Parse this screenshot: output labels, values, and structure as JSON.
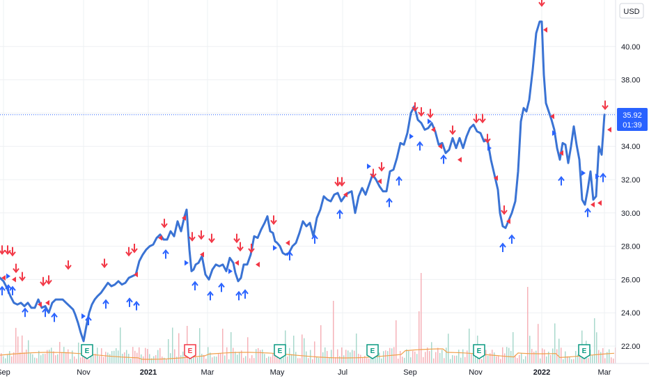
{
  "currency": "USD",
  "price_badge": {
    "price": "35.92",
    "countdown": "01:39"
  },
  "colors": {
    "line": "#3a73d4",
    "up_arrow": "#2962ff",
    "down_arrow": "#f23645",
    "grid": "#eef0f3",
    "vol_up": "#a8d8cc",
    "vol_down": "#f6b2b8",
    "vol_ma": "#f0a04b",
    "earn_green": "#089981",
    "earn_red": "#f23645"
  },
  "chart_data": {
    "type": "line",
    "y_ticks": [
      "22.00",
      "24.00",
      "26.00",
      "28.00",
      "30.00",
      "32.00",
      "34.00",
      "36.00",
      "38.00",
      "40.00"
    ],
    "ylim": [
      21.2,
      42.2
    ],
    "grid": true,
    "x_ticks": [
      {
        "label": "Sep",
        "t": 5,
        "bold": false
      },
      {
        "label": "Nov",
        "t": 120,
        "bold": false
      },
      {
        "label": "2021",
        "t": 213,
        "bold": true
      },
      {
        "label": "Mar",
        "t": 298,
        "bold": false
      },
      {
        "label": "May",
        "t": 398,
        "bold": false
      },
      {
        "label": "Jul",
        "t": 492,
        "bold": false
      },
      {
        "label": "Sep",
        "t": 589,
        "bold": false
      },
      {
        "label": "Nov",
        "t": 683,
        "bold": false
      },
      {
        "label": "2022",
        "t": 778,
        "bold": true
      },
      {
        "label": "Mar",
        "t": 868,
        "bold": false
      }
    ],
    "series": [
      {
        "points": [
          [
            0,
            26.1
          ],
          [
            5,
            25.9
          ],
          [
            10,
            25.5
          ],
          [
            15,
            25.0
          ],
          [
            20,
            24.6
          ],
          [
            25,
            24.5
          ],
          [
            30,
            24.6
          ],
          [
            35,
            24.4
          ],
          [
            40,
            24.6
          ],
          [
            45,
            24.3
          ],
          [
            50,
            24.3
          ],
          [
            55,
            24.8
          ],
          [
            60,
            24.3
          ],
          [
            65,
            24.4
          ],
          [
            70,
            24.0
          ],
          [
            75,
            24.6
          ],
          [
            80,
            24.8
          ],
          [
            85,
            24.8
          ],
          [
            90,
            24.8
          ],
          [
            95,
            24.6
          ],
          [
            100,
            24.4
          ],
          [
            105,
            24.2
          ],
          [
            108,
            23.9
          ],
          [
            112,
            23.4
          ],
          [
            116,
            22.8
          ],
          [
            120,
            22.3
          ],
          [
            124,
            23.2
          ],
          [
            128,
            24.0
          ],
          [
            132,
            24.5
          ],
          [
            136,
            24.8
          ],
          [
            140,
            25.0
          ],
          [
            145,
            25.2
          ],
          [
            150,
            25.5
          ],
          [
            155,
            25.8
          ],
          [
            160,
            25.6
          ],
          [
            165,
            25.7
          ],
          [
            170,
            25.9
          ],
          [
            175,
            25.7
          ],
          [
            180,
            25.8
          ],
          [
            185,
            26.1
          ],
          [
            190,
            26.2
          ],
          [
            195,
            26.3
          ],
          [
            200,
            27.1
          ],
          [
            205,
            27.5
          ],
          [
            210,
            27.8
          ],
          [
            215,
            28.0
          ],
          [
            220,
            28.1
          ],
          [
            225,
            28.5
          ],
          [
            230,
            28.7
          ],
          [
            235,
            28.4
          ],
          [
            240,
            28.4
          ],
          [
            245,
            28.9
          ],
          [
            250,
            28.6
          ],
          [
            255,
            29.5
          ],
          [
            260,
            28.9
          ],
          [
            265,
            29.8
          ],
          [
            268,
            30.2
          ],
          [
            272,
            27.8
          ],
          [
            275,
            26.5
          ],
          [
            278,
            26.6
          ],
          [
            281,
            26.9
          ],
          [
            285,
            27.0
          ],
          [
            290,
            27.4
          ],
          [
            295,
            26.3
          ],
          [
            300,
            26.0
          ],
          [
            305,
            26.6
          ],
          [
            310,
            26.9
          ],
          [
            315,
            26.8
          ],
          [
            320,
            26.9
          ],
          [
            325,
            26.5
          ],
          [
            330,
            27.3
          ],
          [
            335,
            27.0
          ],
          [
            338,
            26.4
          ],
          [
            342,
            25.9
          ],
          [
            346,
            26.1
          ],
          [
            350,
            26.9
          ],
          [
            355,
            26.9
          ],
          [
            360,
            27.5
          ],
          [
            365,
            28.6
          ],
          [
            370,
            28.5
          ],
          [
            375,
            29.0
          ],
          [
            380,
            29.4
          ],
          [
            384,
            29.8
          ],
          [
            388,
            28.9
          ],
          [
            392,
            28.8
          ],
          [
            395,
            28.3
          ],
          [
            398,
            28.2
          ],
          [
            402,
            28.0
          ],
          [
            406,
            27.6
          ],
          [
            410,
            27.5
          ],
          [
            415,
            27.6
          ],
          [
            420,
            28.0
          ],
          [
            425,
            28.2
          ],
          [
            430,
            28.8
          ],
          [
            435,
            29.5
          ],
          [
            440,
            29.2
          ],
          [
            445,
            29.4
          ],
          [
            450,
            28.6
          ],
          [
            455,
            29.7
          ],
          [
            460,
            30.2
          ],
          [
            465,
            31.0
          ],
          [
            470,
            30.8
          ],
          [
            475,
            30.7
          ],
          [
            480,
            31.1
          ],
          [
            485,
            31.2
          ],
          [
            490,
            30.7
          ],
          [
            495,
            31.0
          ],
          [
            500,
            31.2
          ],
          [
            505,
            31.3
          ],
          [
            510,
            30.0
          ],
          [
            515,
            31.0
          ],
          [
            520,
            31.5
          ],
          [
            525,
            31.1
          ],
          [
            530,
            31.7
          ],
          [
            535,
            32.3
          ],
          [
            540,
            32.0
          ],
          [
            545,
            31.6
          ],
          [
            550,
            31.3
          ],
          [
            555,
            31.3
          ],
          [
            560,
            32.5
          ],
          [
            565,
            32.6
          ],
          [
            570,
            33.3
          ],
          [
            575,
            34.2
          ],
          [
            580,
            34.1
          ],
          [
            585,
            34.8
          ],
          [
            590,
            36.0
          ],
          [
            595,
            36.4
          ],
          [
            600,
            35.6
          ],
          [
            605,
            35.4
          ],
          [
            610,
            35.0
          ],
          [
            615,
            35.1
          ],
          [
            620,
            35.4
          ],
          [
            625,
            34.9
          ],
          [
            630,
            34.1
          ],
          [
            635,
            34.2
          ],
          [
            640,
            33.6
          ],
          [
            645,
            33.8
          ],
          [
            650,
            34.5
          ],
          [
            655,
            33.9
          ],
          [
            660,
            34.5
          ],
          [
            665,
            33.9
          ],
          [
            670,
            34.6
          ],
          [
            675,
            35.1
          ],
          [
            680,
            35.3
          ],
          [
            685,
            34.9
          ],
          [
            690,
            34.8
          ],
          [
            695,
            34.3
          ],
          [
            700,
            34.4
          ],
          [
            705,
            33.2
          ],
          [
            710,
            32.3
          ],
          [
            715,
            31.4
          ],
          [
            718,
            30.0
          ],
          [
            722,
            29.2
          ],
          [
            726,
            29.1
          ],
          [
            730,
            29.5
          ],
          [
            735,
            30.0
          ],
          [
            740,
            30.7
          ],
          [
            744,
            32.5
          ],
          [
            748,
            35.5
          ],
          [
            752,
            36.3
          ],
          [
            756,
            36.1
          ],
          [
            760,
            36.8
          ],
          [
            765,
            38.6
          ],
          [
            770,
            40.8
          ],
          [
            775,
            41.5
          ],
          [
            778,
            41.5
          ],
          [
            781,
            38.3
          ],
          [
            784,
            36.6
          ],
          [
            788,
            36.1
          ],
          [
            792,
            35.6
          ],
          [
            796,
            35.0
          ],
          [
            800,
            33.9
          ],
          [
            804,
            33.2
          ],
          [
            808,
            34.2
          ],
          [
            812,
            34.1
          ],
          [
            816,
            33.0
          ],
          [
            820,
            34.0
          ],
          [
            824,
            35.2
          ],
          [
            828,
            34.1
          ],
          [
            832,
            33.2
          ],
          [
            836,
            30.8
          ],
          [
            840,
            30.5
          ],
          [
            844,
            31.4
          ],
          [
            848,
            32.5
          ],
          [
            852,
            30.8
          ],
          [
            856,
            31.0
          ],
          [
            860,
            34.0
          ],
          [
            864,
            33.5
          ],
          [
            868,
            35.9
          ]
        ]
      }
    ],
    "signals_down": [
      [
        3,
        27.8
      ],
      [
        11,
        27.8
      ],
      [
        18,
        27.7
      ],
      [
        23,
        26.7
      ],
      [
        32,
        26.2
      ],
      [
        62,
        25.9
      ],
      [
        70,
        26.0
      ],
      [
        98,
        26.9
      ],
      [
        150,
        27.0
      ],
      [
        185,
        27.7
      ],
      [
        193,
        27.9
      ],
      [
        236,
        29.4
      ],
      [
        276,
        28.6
      ],
      [
        289,
        28.7
      ],
      [
        304,
        28.5
      ],
      [
        340,
        28.5
      ],
      [
        345,
        28.0
      ],
      [
        361,
        27.9
      ],
      [
        393,
        29.6
      ],
      [
        485,
        31.9
      ],
      [
        491,
        31.9
      ],
      [
        536,
        32.4
      ],
      [
        548,
        32.8
      ],
      [
        596,
        36.4
      ],
      [
        605,
        36.1
      ],
      [
        618,
        36.0
      ],
      [
        650,
        35.0
      ],
      [
        684,
        35.7
      ],
      [
        693,
        35.7
      ],
      [
        700,
        34.5
      ],
      [
        724,
        30.2
      ],
      [
        778,
        42.7
      ],
      [
        869,
        36.5
      ]
    ],
    "signals_up": [
      [
        3,
        25.3
      ],
      [
        12,
        25.4
      ],
      [
        18,
        25.3
      ],
      [
        36,
        24.0
      ],
      [
        65,
        24.0
      ],
      [
        78,
        23.7
      ],
      [
        127,
        23.5
      ],
      [
        152,
        24.5
      ],
      [
        186,
        24.6
      ],
      [
        196,
        24.4
      ],
      [
        238,
        27.5
      ],
      [
        280,
        25.6
      ],
      [
        302,
        25.0
      ],
      [
        318,
        25.5
      ],
      [
        343,
        25.0
      ],
      [
        352,
        25.1
      ],
      [
        416,
        27.4
      ],
      [
        452,
        28.4
      ],
      [
        488,
        29.9
      ],
      [
        559,
        30.6
      ],
      [
        573,
        31.9
      ],
      [
        603,
        34.0
      ],
      [
        637,
        33.2
      ],
      [
        722,
        27.9
      ],
      [
        735,
        28.4
      ],
      [
        806,
        31.9
      ],
      [
        844,
        30.0
      ],
      [
        866,
        32.1
      ]
    ],
    "markers_left": [
      [
        5,
        26.1
      ],
      [
        20,
        26.0
      ],
      [
        57,
        24.5
      ],
      [
        68,
        24.6
      ],
      [
        195,
        26.3
      ],
      [
        230,
        28.5
      ],
      [
        264,
        29.7
      ],
      [
        290,
        27.5
      ],
      [
        340,
        27.0
      ],
      [
        370,
        26.9
      ],
      [
        413,
        28.2
      ],
      [
        496,
        31.1
      ],
      [
        545,
        31.9
      ],
      [
        622,
        35.0
      ],
      [
        632,
        34.0
      ],
      [
        660,
        33.2
      ],
      [
        712,
        32.1
      ],
      [
        730,
        29.5
      ],
      [
        783,
        41.0
      ],
      [
        793,
        35.8
      ],
      [
        806,
        33.6
      ],
      [
        851,
        30.5
      ],
      [
        861,
        30.6
      ],
      [
        875,
        35.0
      ]
    ],
    "markers_right": [
      [
        12,
        26.2
      ],
      [
        120,
        23.8
      ],
      [
        268,
        27.0
      ],
      [
        331,
        26.5
      ],
      [
        395,
        27.9
      ],
      [
        530,
        32.8
      ],
      [
        591,
        34.6
      ],
      [
        617,
        35.5
      ],
      [
        703,
        33.9
      ],
      [
        796,
        34.8
      ],
      [
        838,
        32.4
      ],
      [
        858,
        32.2
      ]
    ],
    "earnings": [
      {
        "t": 125,
        "label": "E",
        "color": "green"
      },
      {
        "t": 273,
        "label": "E",
        "color": "red"
      },
      {
        "t": 402,
        "label": "E",
        "color": "green"
      },
      {
        "t": 535,
        "label": "E",
        "color": "green"
      },
      {
        "t": 688,
        "label": "E",
        "color": "green"
      },
      {
        "t": 839,
        "label": "E",
        "color": "green"
      }
    ]
  }
}
